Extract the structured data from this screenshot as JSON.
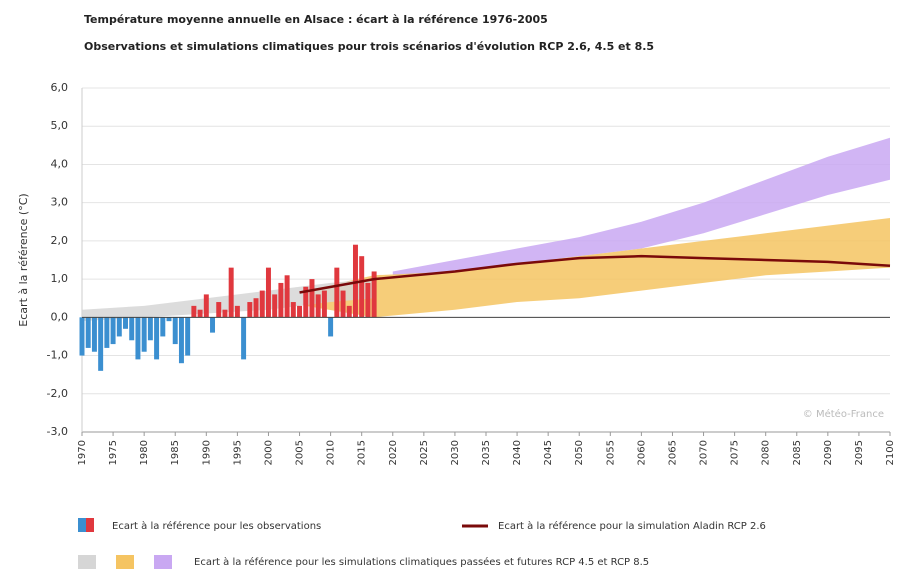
{
  "chart_data": {
    "type": "bar",
    "title": "Température moyenne annuelle en Alsace : écart à la référence 1976-2005",
    "subtitle": "Observations et simulations climatiques pour trois scénarios d'évolution RCP 2.6, 4.5 et 8.5",
    "y_label": "Ecart à la référence (°C)",
    "watermark": "© Météo-France",
    "x": [
      1970,
      1971,
      1972,
      1973,
      1974,
      1975,
      1976,
      1977,
      1978,
      1979,
      1980,
      1981,
      1982,
      1983,
      1984,
      1985,
      1986,
      1987,
      1988,
      1989,
      1990,
      1991,
      1992,
      1993,
      1994,
      1995,
      1996,
      1997,
      1998,
      1999,
      2000,
      2001,
      2002,
      2003,
      2004,
      2005,
      2006,
      2007,
      2008,
      2009,
      2010,
      2011,
      2012,
      2013,
      2014,
      2015,
      2016,
      2017
    ],
    "values": [
      -1.0,
      -0.8,
      -0.9,
      -1.4,
      -0.8,
      -0.7,
      -0.5,
      -0.3,
      -0.6,
      -1.1,
      -0.9,
      -0.6,
      -1.1,
      -0.5,
      -0.1,
      -0.7,
      -1.2,
      -1.0,
      0.3,
      0.2,
      0.6,
      -0.4,
      0.4,
      0.2,
      1.3,
      0.3,
      -1.1,
      0.4,
      0.5,
      0.7,
      1.3,
      0.6,
      0.9,
      1.1,
      0.4,
      0.3,
      0.8,
      1.0,
      0.6,
      0.7,
      -0.5,
      1.3,
      0.7,
      0.3,
      1.9,
      1.6,
      0.9,
      1.2
    ],
    "positive_color": "#e0383e",
    "negative_color": "#3b8fd0",
    "bands": [
      {
        "color": "#c9a8f2",
        "x": [
          2020,
          2030,
          2040,
          2050,
          2060,
          2070,
          2080,
          2090,
          2100
        ],
        "lower": [
          1.1,
          1.2,
          1.4,
          1.6,
          1.8,
          2.2,
          2.7,
          3.2,
          3.6
        ],
        "upper": [
          1.2,
          1.5,
          1.8,
          2.1,
          2.5,
          3.0,
          3.6,
          4.2,
          4.7
        ]
      },
      {
        "color": "#f5c462",
        "x": [
          2006,
          2017,
          2030,
          2040,
          2050,
          2060,
          2070,
          2080,
          2090,
          2100
        ],
        "lower": [
          0.3,
          0.0,
          0.2,
          0.4,
          0.5,
          0.7,
          0.9,
          1.1,
          1.2,
          1.3
        ],
        "upper": [
          0.7,
          1.1,
          1.2,
          1.4,
          1.6,
          1.8,
          2.0,
          2.2,
          2.4,
          2.6
        ]
      },
      {
        "color": "#d6d6d6",
        "x": [
          1970,
          1980,
          1990,
          2000,
          2010,
          2017
        ],
        "lower": [
          -0.1,
          0.0,
          0.1,
          0.2,
          0.4,
          0.5
        ],
        "upper": [
          0.2,
          0.3,
          0.5,
          0.7,
          0.9,
          1.0
        ]
      }
    ],
    "series": [
      {
        "name": "Ecart à la référence pour la simulation Aladin RCP 2.6",
        "color": "#7a0a0a",
        "x": [
          2005,
          2017,
          2030,
          2040,
          2050,
          2060,
          2070,
          2080,
          2090,
          2100
        ],
        "values": [
          0.65,
          1.0,
          1.2,
          1.4,
          1.55,
          1.6,
          1.55,
          1.5,
          1.45,
          1.35
        ]
      }
    ],
    "legend": [
      "Ecart à la référence pour les observations",
      "Ecart à la référence pour les simulations climatiques passées et futures RCP 4.5 et RCP 8.5"
    ],
    "xlim": [
      1970,
      2100
    ],
    "xticks": [
      1970,
      1975,
      1980,
      1985,
      1990,
      1995,
      2000,
      2005,
      2010,
      2015,
      2020,
      2025,
      2030,
      2035,
      2040,
      2045,
      2050,
      2055,
      2060,
      2065,
      2070,
      2075,
      2080,
      2085,
      2090,
      2095,
      2100
    ],
    "ylim": [
      -3,
      6
    ],
    "yticks": [
      {
        "value": -3,
        "label": "-3,0"
      },
      {
        "value": -2,
        "label": "-2,0"
      },
      {
        "value": -1,
        "label": "-1,0"
      },
      {
        "value": 0,
        "label": "0,0"
      },
      {
        "value": 1,
        "label": "1,0"
      },
      {
        "value": 2,
        "label": "2,0"
      },
      {
        "value": 3,
        "label": "3,0"
      },
      {
        "value": 4,
        "label": "4,0"
      },
      {
        "value": 5,
        "label": "5,0"
      },
      {
        "value": 6,
        "label": "6,0"
      }
    ],
    "grid": true
  }
}
